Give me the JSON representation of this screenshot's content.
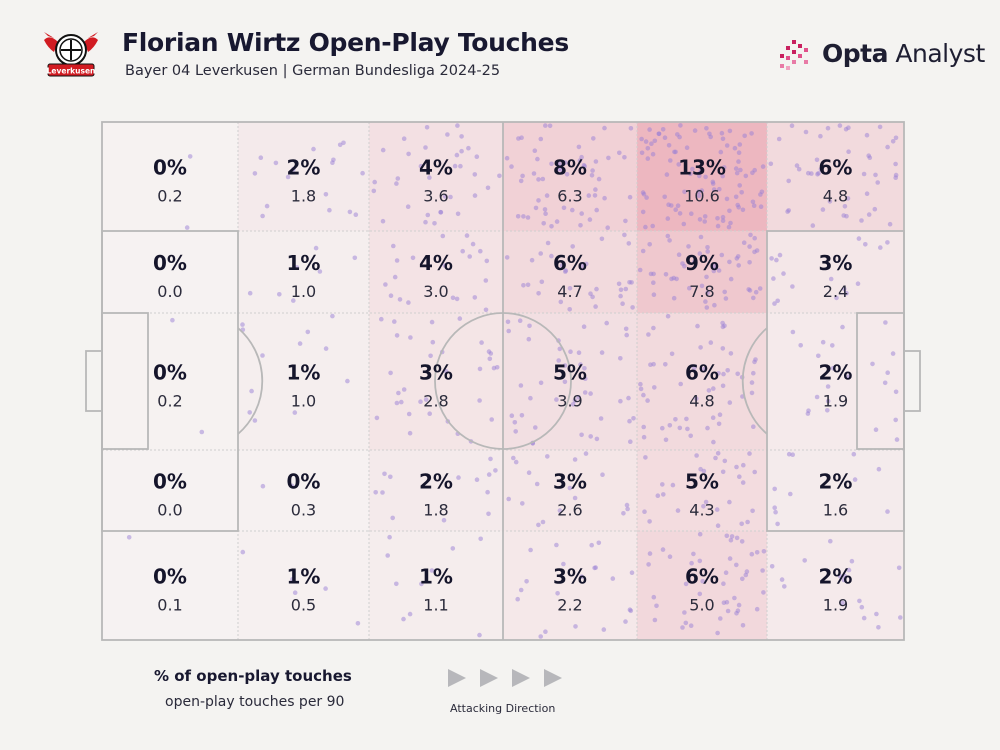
{
  "header": {
    "title": "Florian Wirtz Open-Play Touches",
    "subtitle": "Bayer 04 Leverkusen | German Bundesliga 2024-25",
    "brand": {
      "name_bold": "Opta",
      "name_regular": " Analyst"
    },
    "crest_text": "Leverkusen"
  },
  "legend": {
    "pct_label": "% of open-play touches",
    "p90_label": "open-play touches per 90",
    "direction_label": "Attacking Direction"
  },
  "colors": {
    "background": "#f4f3f1",
    "heat": "#e58a9a",
    "dot": "#9a7fd6",
    "line": "#b8b8b8"
  },
  "chart_data": {
    "type": "heatmap",
    "title": "Florian Wirtz Open-Play Touches",
    "columns": 6,
    "rows": 5,
    "attacking_direction": "left-to-right",
    "pct": [
      [
        "0%",
        "2%",
        "4%",
        "8%",
        "13%",
        "6%"
      ],
      [
        "0%",
        "1%",
        "4%",
        "6%",
        "9%",
        "3%"
      ],
      [
        "0%",
        "1%",
        "3%",
        "5%",
        "6%",
        "2%"
      ],
      [
        "0%",
        "0%",
        "2%",
        "3%",
        "5%",
        "2%"
      ],
      [
        "0%",
        "1%",
        "1%",
        "3%",
        "6%",
        "2%"
      ]
    ],
    "per90": [
      [
        "0.2",
        "1.8",
        "3.6",
        "6.3",
        "10.6",
        "4.8"
      ],
      [
        "0.0",
        "1.0",
        "3.0",
        "4.7",
        "7.8",
        "2.4"
      ],
      [
        "0.2",
        "1.0",
        "2.8",
        "3.9",
        "4.8",
        "1.9"
      ],
      [
        "0.0",
        "0.3",
        "1.8",
        "2.6",
        "4.3",
        "1.6"
      ],
      [
        "0.1",
        "0.5",
        "1.1",
        "2.2",
        "5.0",
        "1.9"
      ]
    ]
  }
}
